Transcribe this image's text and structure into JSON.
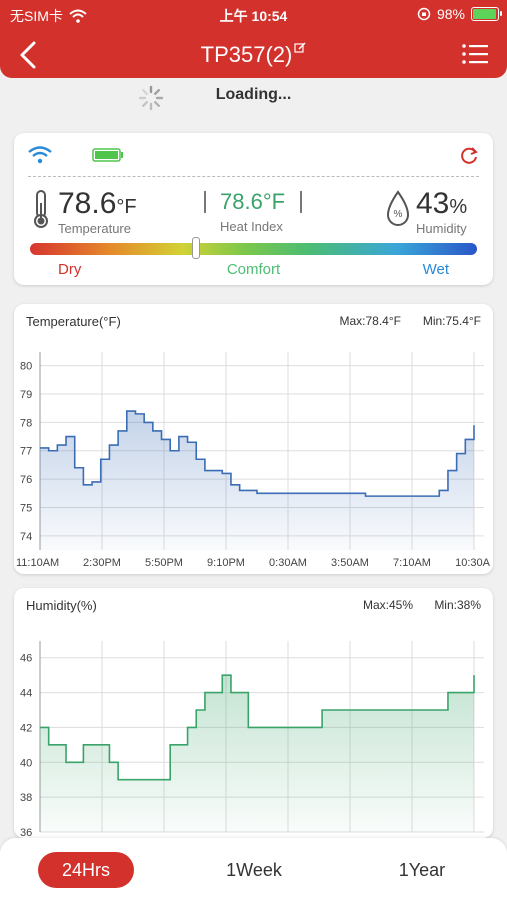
{
  "status_bar": {
    "carrier": "无SIM卡",
    "time": "上午 10:54",
    "battery": "98%",
    "battery_level": 0.98
  },
  "nav": {
    "title": "TP357(2)"
  },
  "loading_text": "Loading...",
  "summary": {
    "temperature": {
      "value": "78.6",
      "unit": "°F",
      "label": "Temperature"
    },
    "heat_index": {
      "value": "78.6°F",
      "label": "Heat Index"
    },
    "humidity": {
      "value": "43",
      "unit": "%",
      "label": "Humidity",
      "icon_text": "%"
    },
    "comfort_scale": {
      "dry": "Dry",
      "comfort": "Comfort",
      "wet": "Wet"
    }
  },
  "colors": {
    "brand": "#d2312c",
    "temp_line": "#3a6db5",
    "humid_line": "#3aa36a",
    "wifi": "#2a8ad8",
    "battery": "#4fc54b"
  },
  "chart_data": [
    {
      "type": "line",
      "title": "Temperature(°F)",
      "max_label": "Max:78.4°F",
      "min_label": "Min:75.4°F",
      "categories": [
        "11:10AM",
        "2:30PM",
        "5:50PM",
        "9:10PM",
        "0:30AM",
        "3:50AM",
        "7:10AM",
        "10:30A"
      ],
      "yticks": [
        "80",
        "79",
        "78",
        "77",
        "76",
        "75",
        "74"
      ],
      "ylim": [
        73.5,
        80.2
      ],
      "x": [
        0,
        0.02,
        0.04,
        0.06,
        0.08,
        0.1,
        0.12,
        0.14,
        0.16,
        0.18,
        0.2,
        0.22,
        0.24,
        0.26,
        0.28,
        0.3,
        0.32,
        0.34,
        0.36,
        0.38,
        0.4,
        0.42,
        0.44,
        0.46,
        0.48,
        0.5,
        0.52,
        0.54,
        0.56,
        0.6,
        0.65,
        0.7,
        0.75,
        0.8,
        0.85,
        0.9,
        0.92,
        0.94,
        0.96,
        0.98,
        1.0
      ],
      "y": [
        77.1,
        77.0,
        77.2,
        77.5,
        76.4,
        75.8,
        75.9,
        76.7,
        77.2,
        77.7,
        78.4,
        78.3,
        78.0,
        77.7,
        77.4,
        77.0,
        77.5,
        77.3,
        76.7,
        76.3,
        76.3,
        76.2,
        75.8,
        75.6,
        75.6,
        75.5,
        75.5,
        75.5,
        75.5,
        75.5,
        75.5,
        75.5,
        75.4,
        75.4,
        75.4,
        75.4,
        75.6,
        76.3,
        76.9,
        77.4,
        77.9
      ]
    },
    {
      "type": "line",
      "title": "Humidity(%)",
      "max_label": "Max:45%",
      "min_label": "Min:38%",
      "yticks": [
        "46",
        "44",
        "42",
        "40",
        "38",
        "36"
      ],
      "ylim": [
        36,
        46.5
      ],
      "x": [
        0,
        0.02,
        0.04,
        0.06,
        0.08,
        0.1,
        0.12,
        0.14,
        0.16,
        0.18,
        0.2,
        0.22,
        0.24,
        0.26,
        0.28,
        0.3,
        0.32,
        0.34,
        0.36,
        0.38,
        0.4,
        0.42,
        0.44,
        0.46,
        0.48,
        0.5,
        0.52,
        0.54,
        0.56,
        0.58,
        0.6,
        0.65,
        0.7,
        0.75,
        0.8,
        0.85,
        0.9,
        0.92,
        0.94,
        0.96,
        1.0
      ],
      "y": [
        42,
        41,
        41,
        40,
        40,
        41,
        41,
        41,
        40,
        39,
        39,
        39,
        39,
        39,
        39,
        41,
        41,
        42,
        43,
        44,
        44,
        45,
        44,
        44,
        42,
        42,
        42,
        42,
        42,
        42,
        42,
        43,
        43,
        43,
        43,
        43,
        43,
        43,
        44,
        44,
        45
      ]
    }
  ],
  "tabs": [
    {
      "label": "24Hrs",
      "active": true
    },
    {
      "label": "1Week",
      "active": false
    },
    {
      "label": "1Year",
      "active": false
    }
  ]
}
